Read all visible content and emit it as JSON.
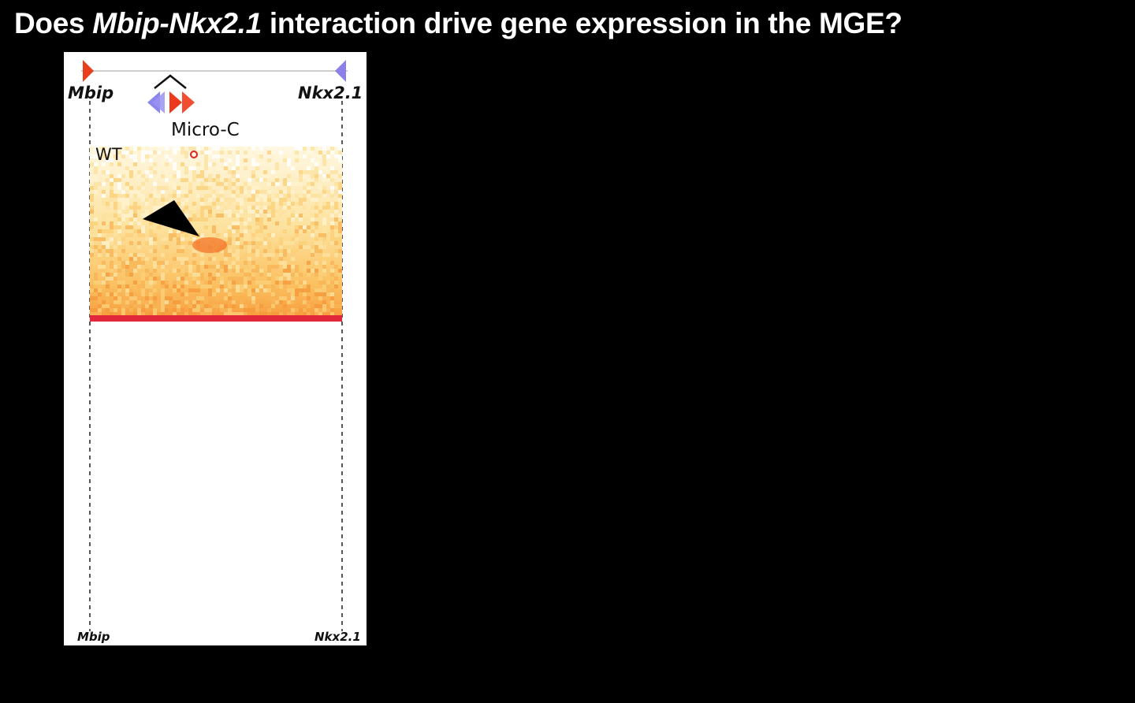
{
  "slide": {
    "title_prefix": "Does ",
    "title_gene": "Mbip-Nkx2.1",
    "title_suffix": " interaction drive gene expression in the MGE?"
  },
  "figure": {
    "gene_left": "Mbip",
    "gene_right": "Nkx2.1",
    "assay_label": "Micro-C",
    "condition_label": "WT",
    "bottom_gene_left": "Mbip",
    "bottom_gene_right": "Nkx2.1",
    "colors": {
      "gene_left_marker": "#e8401c",
      "gene_right_marker": "#8b7fe8",
      "heatmap_low": "#fff6d8",
      "heatmap_high": "#e23a2a"
    }
  }
}
